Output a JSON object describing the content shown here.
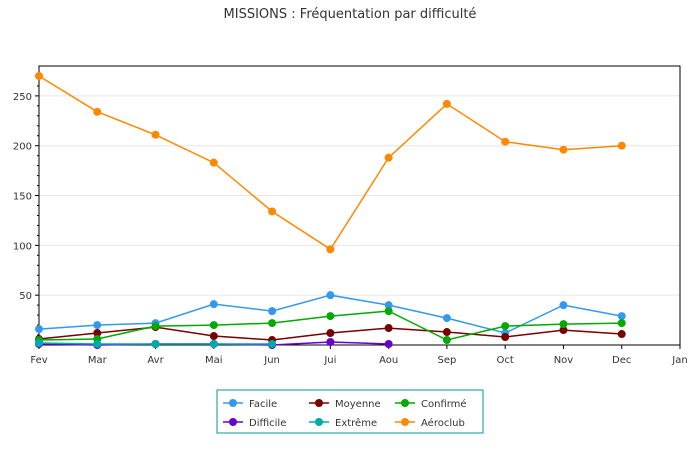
{
  "chart_data": {
    "type": "line",
    "title": "MISSIONS : Fréquentation par difficulté",
    "xlabel": "",
    "ylabel": "",
    "categories": [
      "Fev",
      "Mar",
      "Avr",
      "Mai",
      "Jun",
      "Jui",
      "Aou",
      "Sep",
      "Oct",
      "Nov",
      "Dec",
      "Jan"
    ],
    "ylim": [
      0,
      280
    ],
    "yticks": [
      50,
      100,
      150,
      200,
      250
    ],
    "grid": true,
    "legend_position": "bottom",
    "series": [
      {
        "name": "Facile",
        "color": "#3399ee",
        "values": [
          16,
          20,
          22,
          41,
          34,
          50,
          40,
          27,
          12,
          40,
          29,
          null
        ]
      },
      {
        "name": "Moyenne",
        "color": "#770000",
        "values": [
          6,
          12,
          18,
          9,
          5,
          12,
          17,
          13,
          8,
          15,
          11,
          null
        ]
      },
      {
        "name": "Confirmé",
        "color": "#00aa00",
        "values": [
          5,
          6,
          19,
          20,
          22,
          29,
          34,
          5,
          19,
          21,
          22,
          null
        ]
      },
      {
        "name": "Difficile",
        "color": "#6600cc",
        "values": [
          1,
          0,
          1,
          1,
          0,
          3,
          1,
          null,
          null,
          null,
          null,
          null
        ]
      },
      {
        "name": "Extrême",
        "color": "#00aaaa",
        "values": [
          2,
          1,
          1,
          1,
          1,
          null,
          null,
          null,
          null,
          null,
          null,
          null
        ]
      },
      {
        "name": "Aéroclub",
        "color": "#ff8800",
        "values": [
          270,
          234,
          211,
          183,
          134,
          96,
          188,
          242,
          204,
          196,
          200,
          null
        ]
      }
    ]
  }
}
